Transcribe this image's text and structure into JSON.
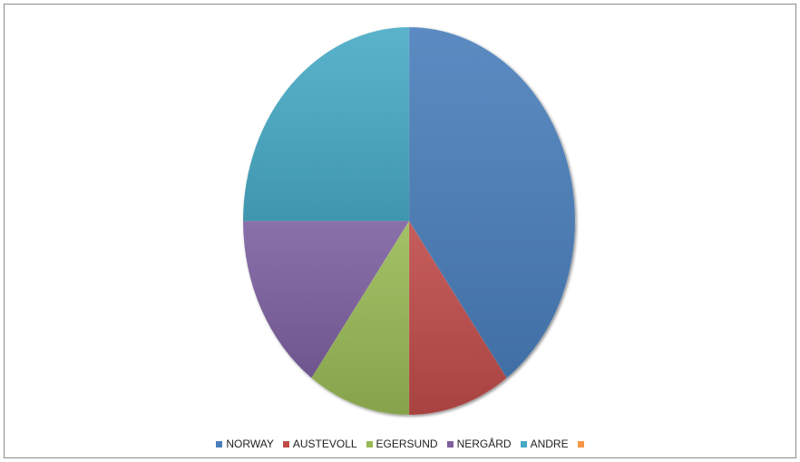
{
  "chart_data": {
    "type": "pie",
    "title": "",
    "start_angle_deg": 0,
    "direction": "clockwise",
    "legend_position": "bottom",
    "slices": [
      {
        "label": "NORWAY",
        "value": 40,
        "color": "#4a7ebb"
      },
      {
        "label": "AUSTEVOLL",
        "value": 10,
        "color": "#be4b48"
      },
      {
        "label": "EGERSUND",
        "value": 10,
        "color": "#98b954"
      },
      {
        "label": "NERGÅRD",
        "value": 15,
        "color": "#7d60a0"
      },
      {
        "label": "ANDRE",
        "value": 25,
        "color": "#46aac5"
      }
    ],
    "legend": [
      {
        "label": "NORWAY",
        "color": "#4a7ebb"
      },
      {
        "label": "AUSTEVOLL",
        "color": "#be4b48"
      },
      {
        "label": "EGERSUND",
        "color": "#98b954"
      },
      {
        "label": "NERGÅRD",
        "color": "#7d60a0"
      },
      {
        "label": "ANDRE",
        "color": "#46aac5"
      },
      {
        "label": "",
        "color": "#f79646"
      }
    ]
  }
}
